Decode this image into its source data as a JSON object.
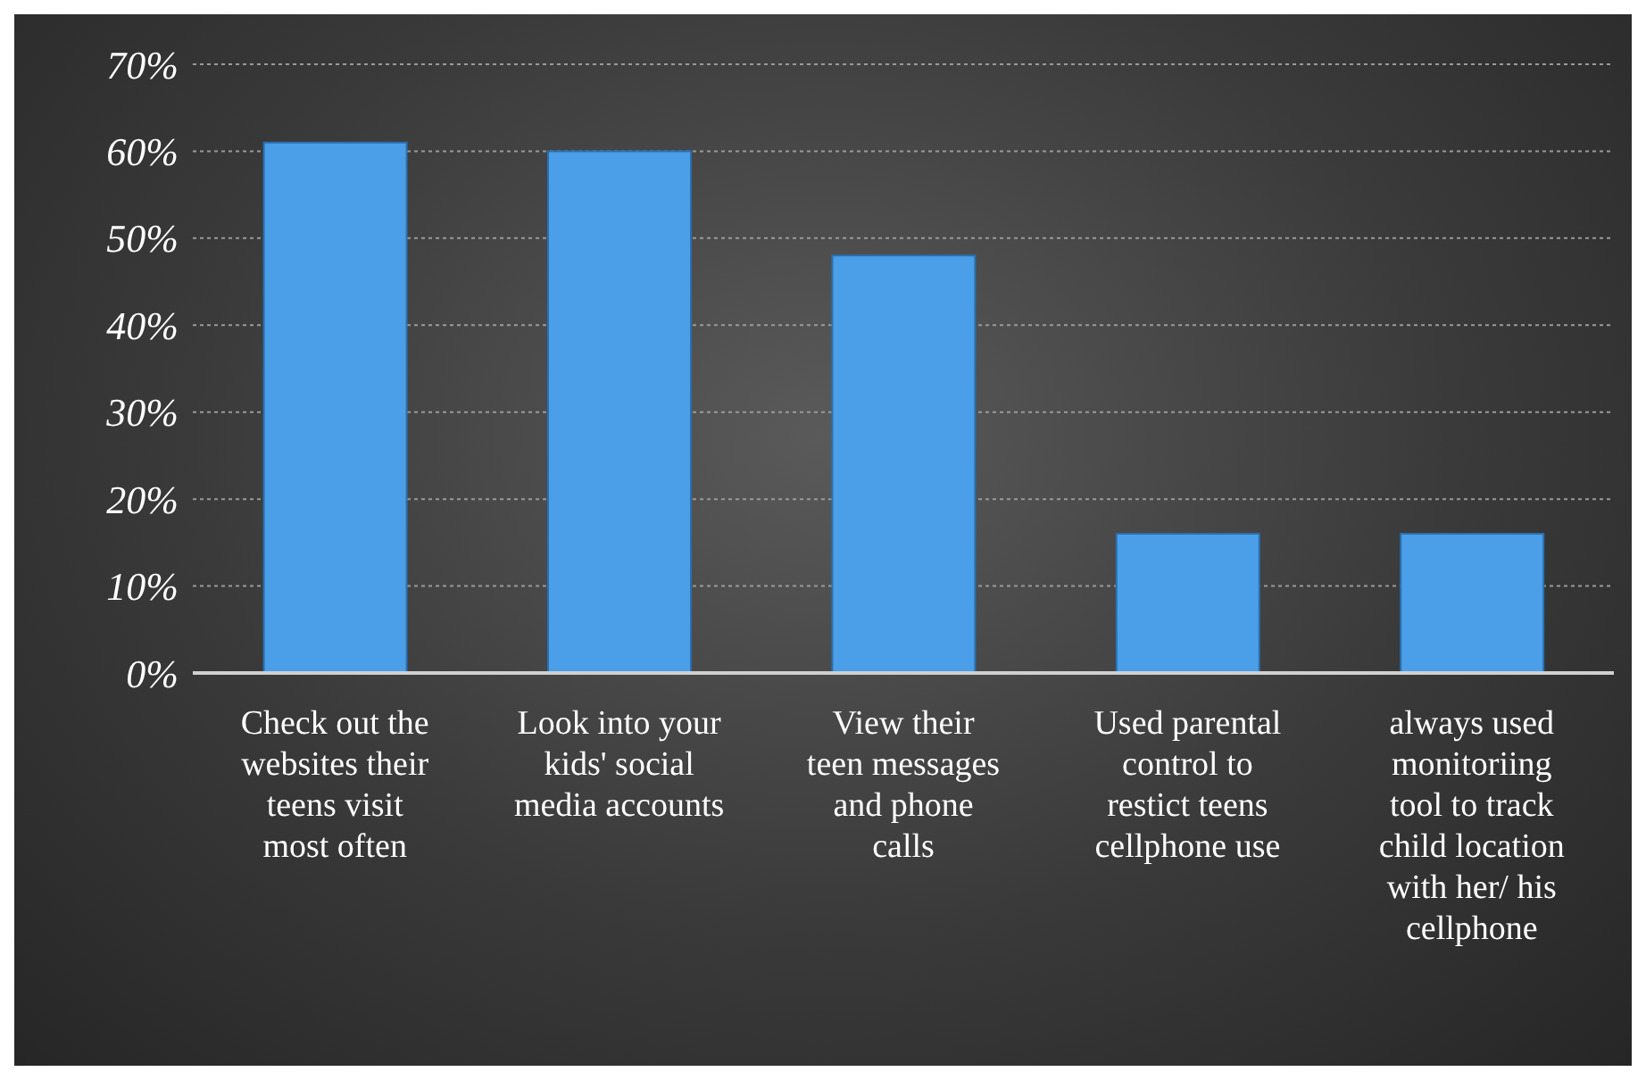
{
  "chart_data": {
    "type": "bar",
    "categories": [
      "Check out the websites their teens visit most often",
      "Look into your kids' social media accounts",
      "View their teen messages and phone calls",
      "Used parental control to restict teens cellphone use",
      "always used monitoriing tool to track child location with her/ his cellphone"
    ],
    "values": [
      61,
      60,
      48,
      16,
      16
    ],
    "color": "#4a9fe8",
    "ylim": [
      0,
      70
    ],
    "yticks": [
      {
        "value": 0,
        "label": "0%"
      },
      {
        "value": 10,
        "label": "10%"
      },
      {
        "value": 20,
        "label": "20%"
      },
      {
        "value": 30,
        "label": "30%"
      },
      {
        "value": 40,
        "label": "40%"
      },
      {
        "value": 50,
        "label": "50%"
      },
      {
        "value": 60,
        "label": "60%"
      },
      {
        "value": 70,
        "label": "70%"
      }
    ],
    "grid": "y",
    "legend": false
  }
}
